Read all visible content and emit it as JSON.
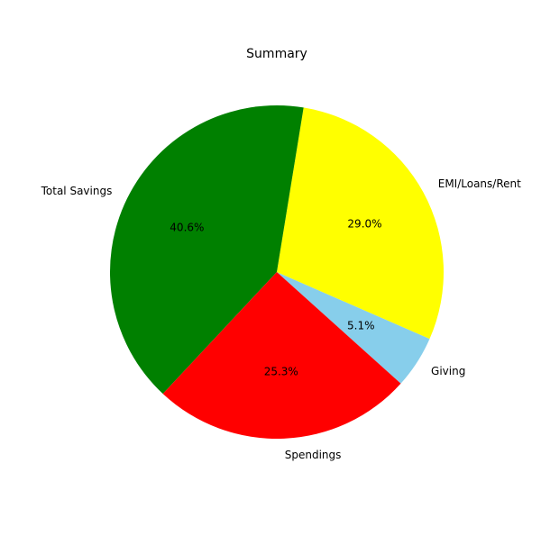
{
  "chart_data": {
    "type": "pie",
    "title": "Summary",
    "start_angle": -42,
    "direction": "counterclockwise",
    "slices": [
      {
        "label": "Giving",
        "value": 5.1,
        "percent_label": "5.1%",
        "color": "#87CEEB"
      },
      {
        "label": "EMI/Loans/Rent",
        "value": 29.0,
        "percent_label": "29.0%",
        "color": "#FFFF00"
      },
      {
        "label": "Total Savings",
        "value": 40.6,
        "percent_label": "40.6%",
        "color": "#008000"
      },
      {
        "label": "Spendings",
        "value": 25.3,
        "percent_label": "25.3%",
        "color": "#FF0000"
      }
    ],
    "legend": false,
    "grid": false
  }
}
